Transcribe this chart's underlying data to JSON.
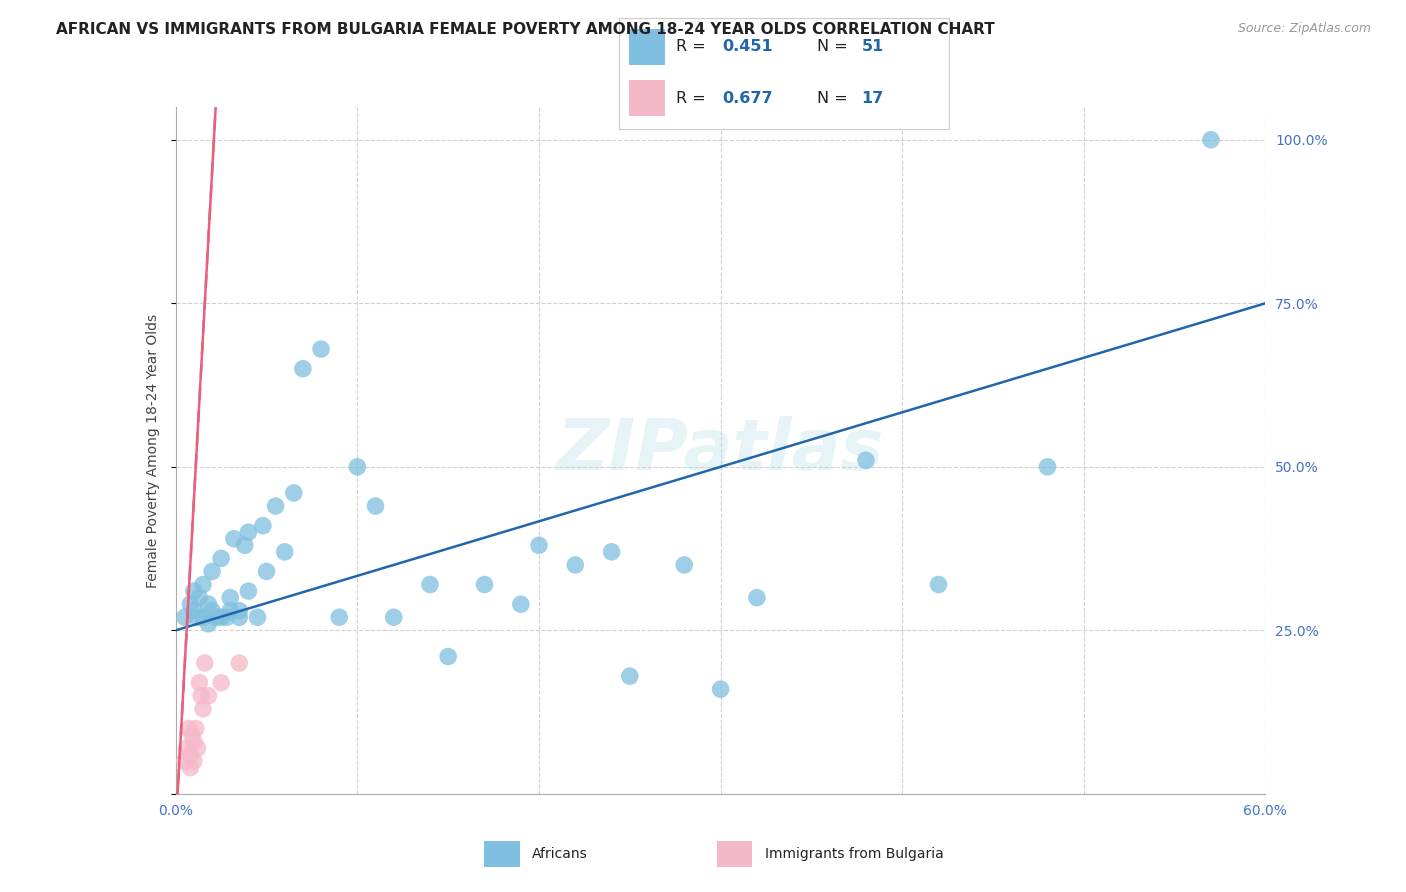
{
  "title": "AFRICAN VS IMMIGRANTS FROM BULGARIA FEMALE POVERTY AMONG 18-24 YEAR OLDS CORRELATION CHART",
  "source": "Source: ZipAtlas.com",
  "ylabel": "Female Poverty Among 18-24 Year Olds",
  "xlim": [
    0.0,
    0.6
  ],
  "ylim": [
    0.0,
    1.05
  ],
  "xticks": [
    0.0,
    0.1,
    0.2,
    0.3,
    0.4,
    0.5,
    0.6
  ],
  "xtick_labels": [
    "0.0%",
    "",
    "",
    "",
    "",
    "",
    "60.0%"
  ],
  "ytick_labels": [
    "",
    "25.0%",
    "50.0%",
    "75.0%",
    "100.0%"
  ],
  "yticks": [
    0.0,
    0.25,
    0.5,
    0.75,
    1.0
  ],
  "blue_color": "#7fbfdf",
  "pink_color": "#f5b8c8",
  "blue_line_color": "#2166ac",
  "pink_line_color": "#e8607a",
  "watermark": "ZIPatlas",
  "legend_r_blue": "0.451",
  "legend_n_blue": "51",
  "legend_r_pink": "0.677",
  "legend_n_pink": "17",
  "legend_label_blue": "Africans",
  "legend_label_pink": "Immigrants from Bulgaria",
  "africans_x": [
    0.005,
    0.008,
    0.01,
    0.01,
    0.012,
    0.013,
    0.015,
    0.015,
    0.018,
    0.018,
    0.02,
    0.02,
    0.022,
    0.025,
    0.025,
    0.028,
    0.03,
    0.03,
    0.032,
    0.035,
    0.035,
    0.038,
    0.04,
    0.04,
    0.045,
    0.048,
    0.05,
    0.055,
    0.06,
    0.065,
    0.07,
    0.08,
    0.09,
    0.1,
    0.11,
    0.12,
    0.14,
    0.15,
    0.17,
    0.19,
    0.2,
    0.22,
    0.24,
    0.25,
    0.28,
    0.3,
    0.32,
    0.38,
    0.42,
    0.48,
    0.57
  ],
  "africans_y": [
    0.27,
    0.29,
    0.28,
    0.31,
    0.27,
    0.3,
    0.27,
    0.32,
    0.26,
    0.29,
    0.28,
    0.34,
    0.27,
    0.27,
    0.36,
    0.27,
    0.28,
    0.3,
    0.39,
    0.27,
    0.28,
    0.38,
    0.31,
    0.4,
    0.27,
    0.41,
    0.34,
    0.44,
    0.37,
    0.46,
    0.65,
    0.68,
    0.27,
    0.5,
    0.44,
    0.27,
    0.32,
    0.21,
    0.32,
    0.29,
    0.38,
    0.35,
    0.37,
    0.18,
    0.35,
    0.16,
    0.3,
    0.51,
    0.32,
    0.5,
    1.0
  ],
  "bulgaria_x": [
    0.005,
    0.006,
    0.007,
    0.008,
    0.008,
    0.009,
    0.01,
    0.01,
    0.011,
    0.012,
    0.013,
    0.014,
    0.015,
    0.016,
    0.018,
    0.025,
    0.035
  ],
  "bulgaria_y": [
    0.05,
    0.07,
    0.1,
    0.04,
    0.06,
    0.09,
    0.05,
    0.08,
    0.1,
    0.07,
    0.17,
    0.15,
    0.13,
    0.2,
    0.15,
    0.17,
    0.2
  ],
  "title_fontsize": 11,
  "axis_label_fontsize": 10,
  "tick_fontsize": 10,
  "right_tick_color": "#4472c4",
  "x_tick_color": "#4472c4",
  "background_color": "#ffffff",
  "grid_color": "#d0d0d0"
}
